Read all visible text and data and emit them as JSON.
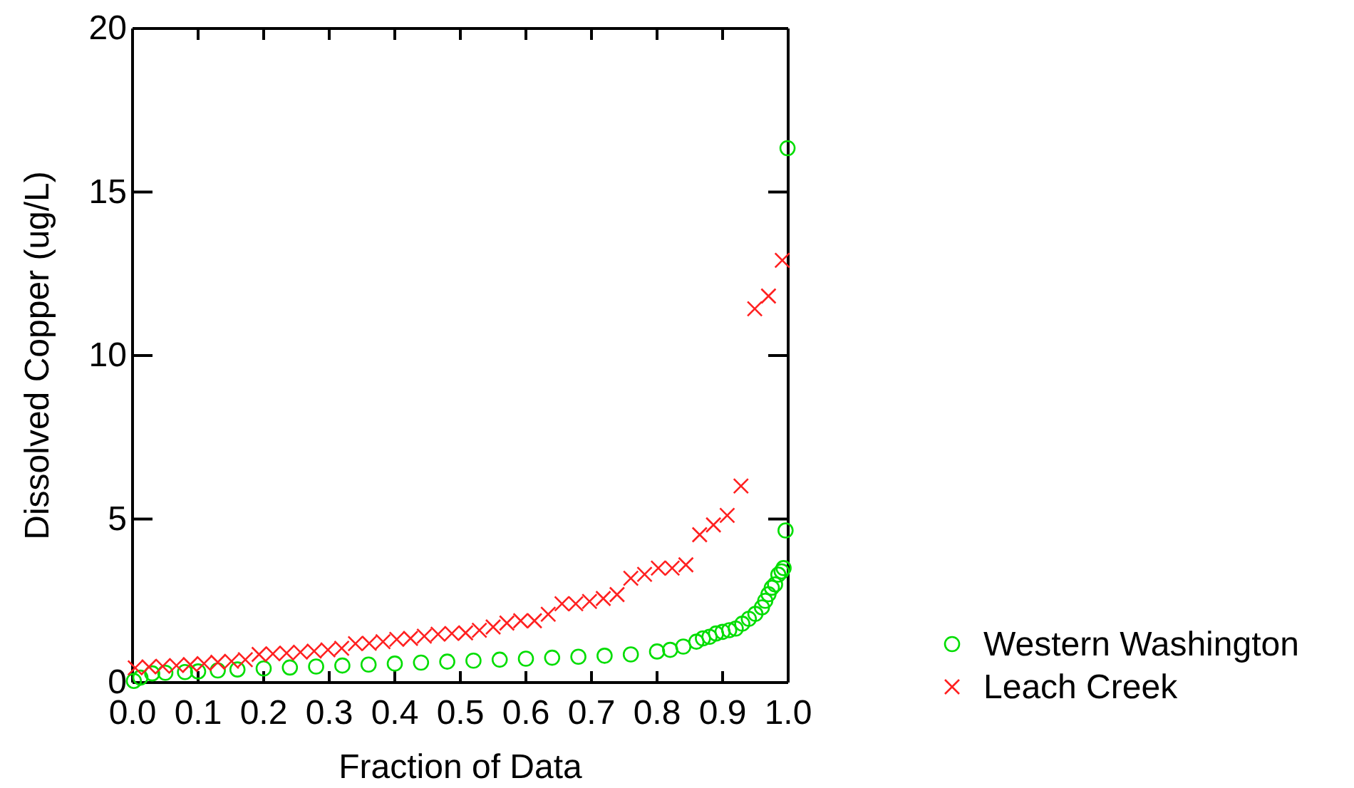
{
  "chart_data": {
    "type": "scatter",
    "xlabel": "Fraction of Data",
    "ylabel": "Dissolved Copper  (ug/L)",
    "xlim": [
      0,
      1
    ],
    "ylim": [
      0,
      20
    ],
    "xticks": [
      {
        "value": 0,
        "label": "0.0"
      },
      0.1,
      0.2,
      0.3,
      0.4,
      0.5,
      0.6,
      0.7,
      0.8,
      0.9,
      {
        "value": 1,
        "label": "1.0"
      }
    ],
    "yticks": [
      0,
      5,
      10,
      15,
      20
    ],
    "legend": "right",
    "series": [
      {
        "name": "Western Washington",
        "color": "#00dd00",
        "marker": "circle",
        "x": [
          0.002,
          0.012,
          0.03,
          0.05,
          0.08,
          0.1,
          0.13,
          0.16,
          0.2,
          0.24,
          0.28,
          0.32,
          0.36,
          0.4,
          0.44,
          0.48,
          0.52,
          0.56,
          0.6,
          0.64,
          0.68,
          0.72,
          0.76,
          0.8,
          0.82,
          0.84,
          0.86,
          0.87,
          0.88,
          0.89,
          0.9,
          0.91,
          0.92,
          0.93,
          0.94,
          0.95,
          0.96,
          0.965,
          0.97,
          0.975,
          0.98,
          0.985,
          0.99,
          0.993,
          0.996,
          0.999
        ],
        "values": [
          0.05,
          0.15,
          0.28,
          0.3,
          0.32,
          0.34,
          0.37,
          0.4,
          0.43,
          0.46,
          0.49,
          0.52,
          0.55,
          0.58,
          0.61,
          0.64,
          0.67,
          0.7,
          0.73,
          0.76,
          0.79,
          0.82,
          0.86,
          0.95,
          1.0,
          1.1,
          1.25,
          1.35,
          1.4,
          1.5,
          1.55,
          1.6,
          1.65,
          1.8,
          1.95,
          2.1,
          2.3,
          2.5,
          2.7,
          2.9,
          3.0,
          3.3,
          3.4,
          3.5,
          4.65,
          16.34
        ]
      },
      {
        "name": "Leach Creek",
        "color": "#ff2020",
        "marker": "cross",
        "x": [
          0.004,
          0.025,
          0.046,
          0.067,
          0.088,
          0.109,
          0.13,
          0.151,
          0.172,
          0.193,
          0.214,
          0.235,
          0.256,
          0.277,
          0.298,
          0.319,
          0.34,
          0.361,
          0.382,
          0.403,
          0.424,
          0.445,
          0.466,
          0.487,
          0.508,
          0.529,
          0.55,
          0.571,
          0.592,
          0.613,
          0.634,
          0.655,
          0.676,
          0.697,
          0.718,
          0.739,
          0.76,
          0.781,
          0.802,
          0.823,
          0.844,
          0.865,
          0.886,
          0.907,
          0.928,
          0.949,
          0.97,
          0.991
        ],
        "values": [
          0.45,
          0.48,
          0.5,
          0.52,
          0.55,
          0.58,
          0.62,
          0.65,
          0.7,
          0.86,
          0.88,
          0.9,
          0.93,
          0.96,
          1.0,
          1.05,
          1.19,
          1.2,
          1.25,
          1.32,
          1.35,
          1.42,
          1.48,
          1.5,
          1.52,
          1.6,
          1.7,
          1.82,
          1.89,
          1.89,
          2.09,
          2.41,
          2.41,
          2.48,
          2.57,
          2.69,
          3.19,
          3.31,
          3.5,
          3.5,
          3.6,
          4.52,
          4.82,
          5.11,
          6.01,
          11.43,
          11.82,
          12.91
        ]
      }
    ]
  }
}
